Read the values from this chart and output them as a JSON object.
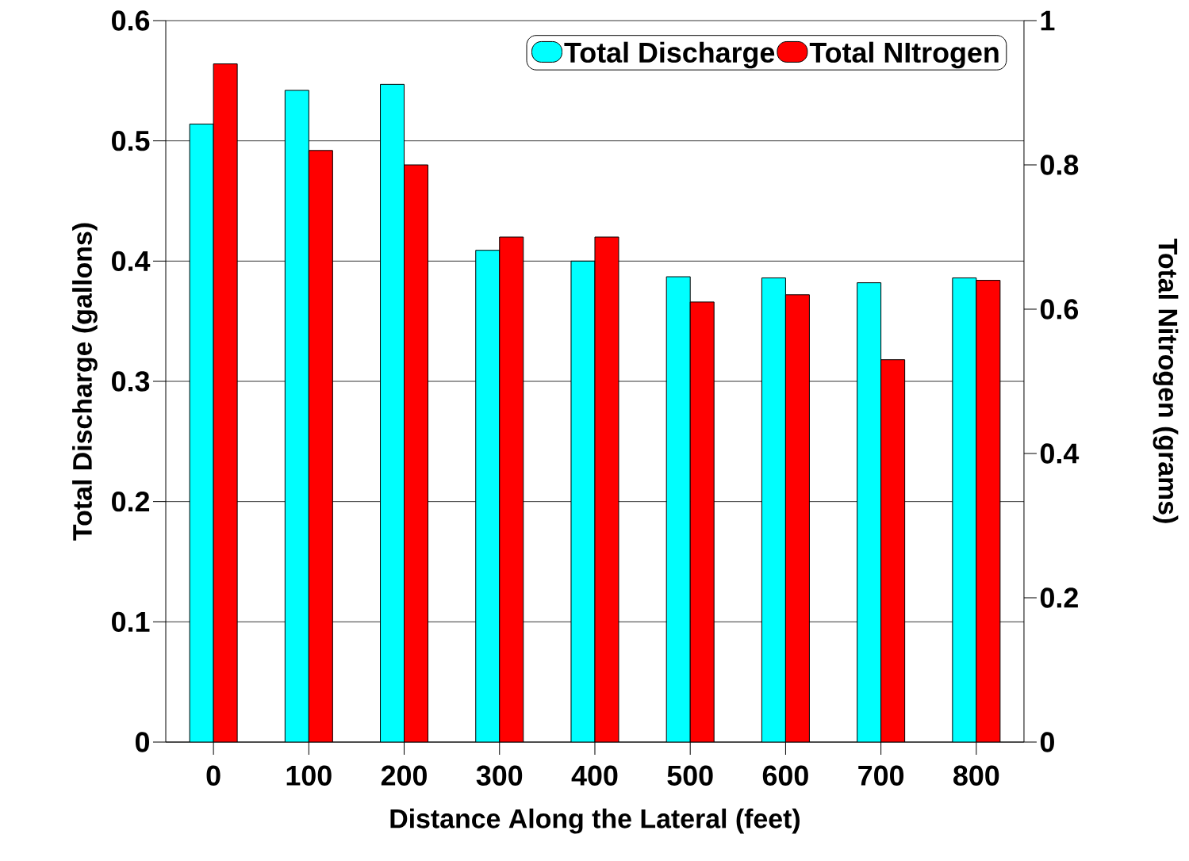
{
  "chart_data": {
    "type": "bar",
    "xlabel": "Distance Along the Lateral (feet)",
    "ylabel": "Total Discharge (gallons)",
    "y2label": "Total Nitrogen (grams)",
    "categories": [
      "0",
      "100",
      "200",
      "300",
      "400",
      "500",
      "600",
      "700",
      "800"
    ],
    "series": [
      {
        "name": "Total Discharge",
        "color": "#00ffff",
        "values": [
          0.514,
          0.542,
          0.547,
          0.409,
          0.4,
          0.387,
          0.386,
          0.382,
          0.386
        ]
      },
      {
        "name": "Total NItrogen",
        "color": "#ff0000",
        "axis": "y2",
        "values": [
          0.94,
          0.82,
          0.8,
          0.7,
          0.7,
          0.61,
          0.62,
          0.53,
          0.64
        ]
      }
    ],
    "ylim": [
      0,
      0.6
    ],
    "yticks": [
      0,
      0.1,
      0.2,
      0.3,
      0.4,
      0.5,
      0.6
    ],
    "y2lim": [
      0,
      1
    ],
    "y2ticks": [
      0,
      0.2,
      0.4,
      0.6,
      0.8,
      1
    ],
    "grid": "y",
    "legend": "top right"
  }
}
